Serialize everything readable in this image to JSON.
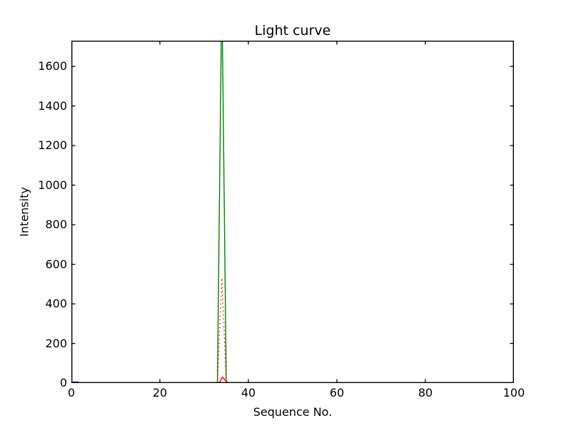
{
  "chart_data": {
    "type": "line",
    "title": "Light curve",
    "xlabel": "Sequence No.",
    "ylabel": "Intensity",
    "xlim": [
      0,
      100
    ],
    "ylim": [
      0,
      1730
    ],
    "xticks": [
      0,
      20,
      40,
      60,
      80,
      100
    ],
    "yticks": [
      0,
      200,
      400,
      600,
      800,
      1000,
      1200,
      1400,
      1600
    ],
    "grid": false,
    "legend": false,
    "background_color": "#ffffff",
    "axes_color": "#000000",
    "tick_direction": "in",
    "series": [
      {
        "name": "blue-solid",
        "color": "#0000ff",
        "linestyle": "solid",
        "points": [
          [
            0,
            5
          ],
          [
            1.6,
            5
          ]
        ]
      },
      {
        "name": "green-solid",
        "color": "#008000",
        "linestyle": "solid",
        "clipped_at_top": true,
        "points": [
          [
            0,
            0
          ],
          [
            33,
            0
          ],
          [
            34,
            2000
          ],
          [
            35,
            0
          ],
          [
            92,
            0
          ]
        ]
      },
      {
        "name": "red-dotted",
        "color": "#ff0000",
        "linestyle": "dotted",
        "points": [
          [
            33,
            0
          ],
          [
            34,
            530
          ],
          [
            35,
            0
          ]
        ]
      },
      {
        "name": "red-solid",
        "color": "#ff0000",
        "linestyle": "solid",
        "points": [
          [
            0,
            0
          ],
          [
            33.4,
            0
          ],
          [
            34.1,
            30
          ],
          [
            35.4,
            0
          ],
          [
            92,
            0
          ]
        ]
      }
    ]
  }
}
